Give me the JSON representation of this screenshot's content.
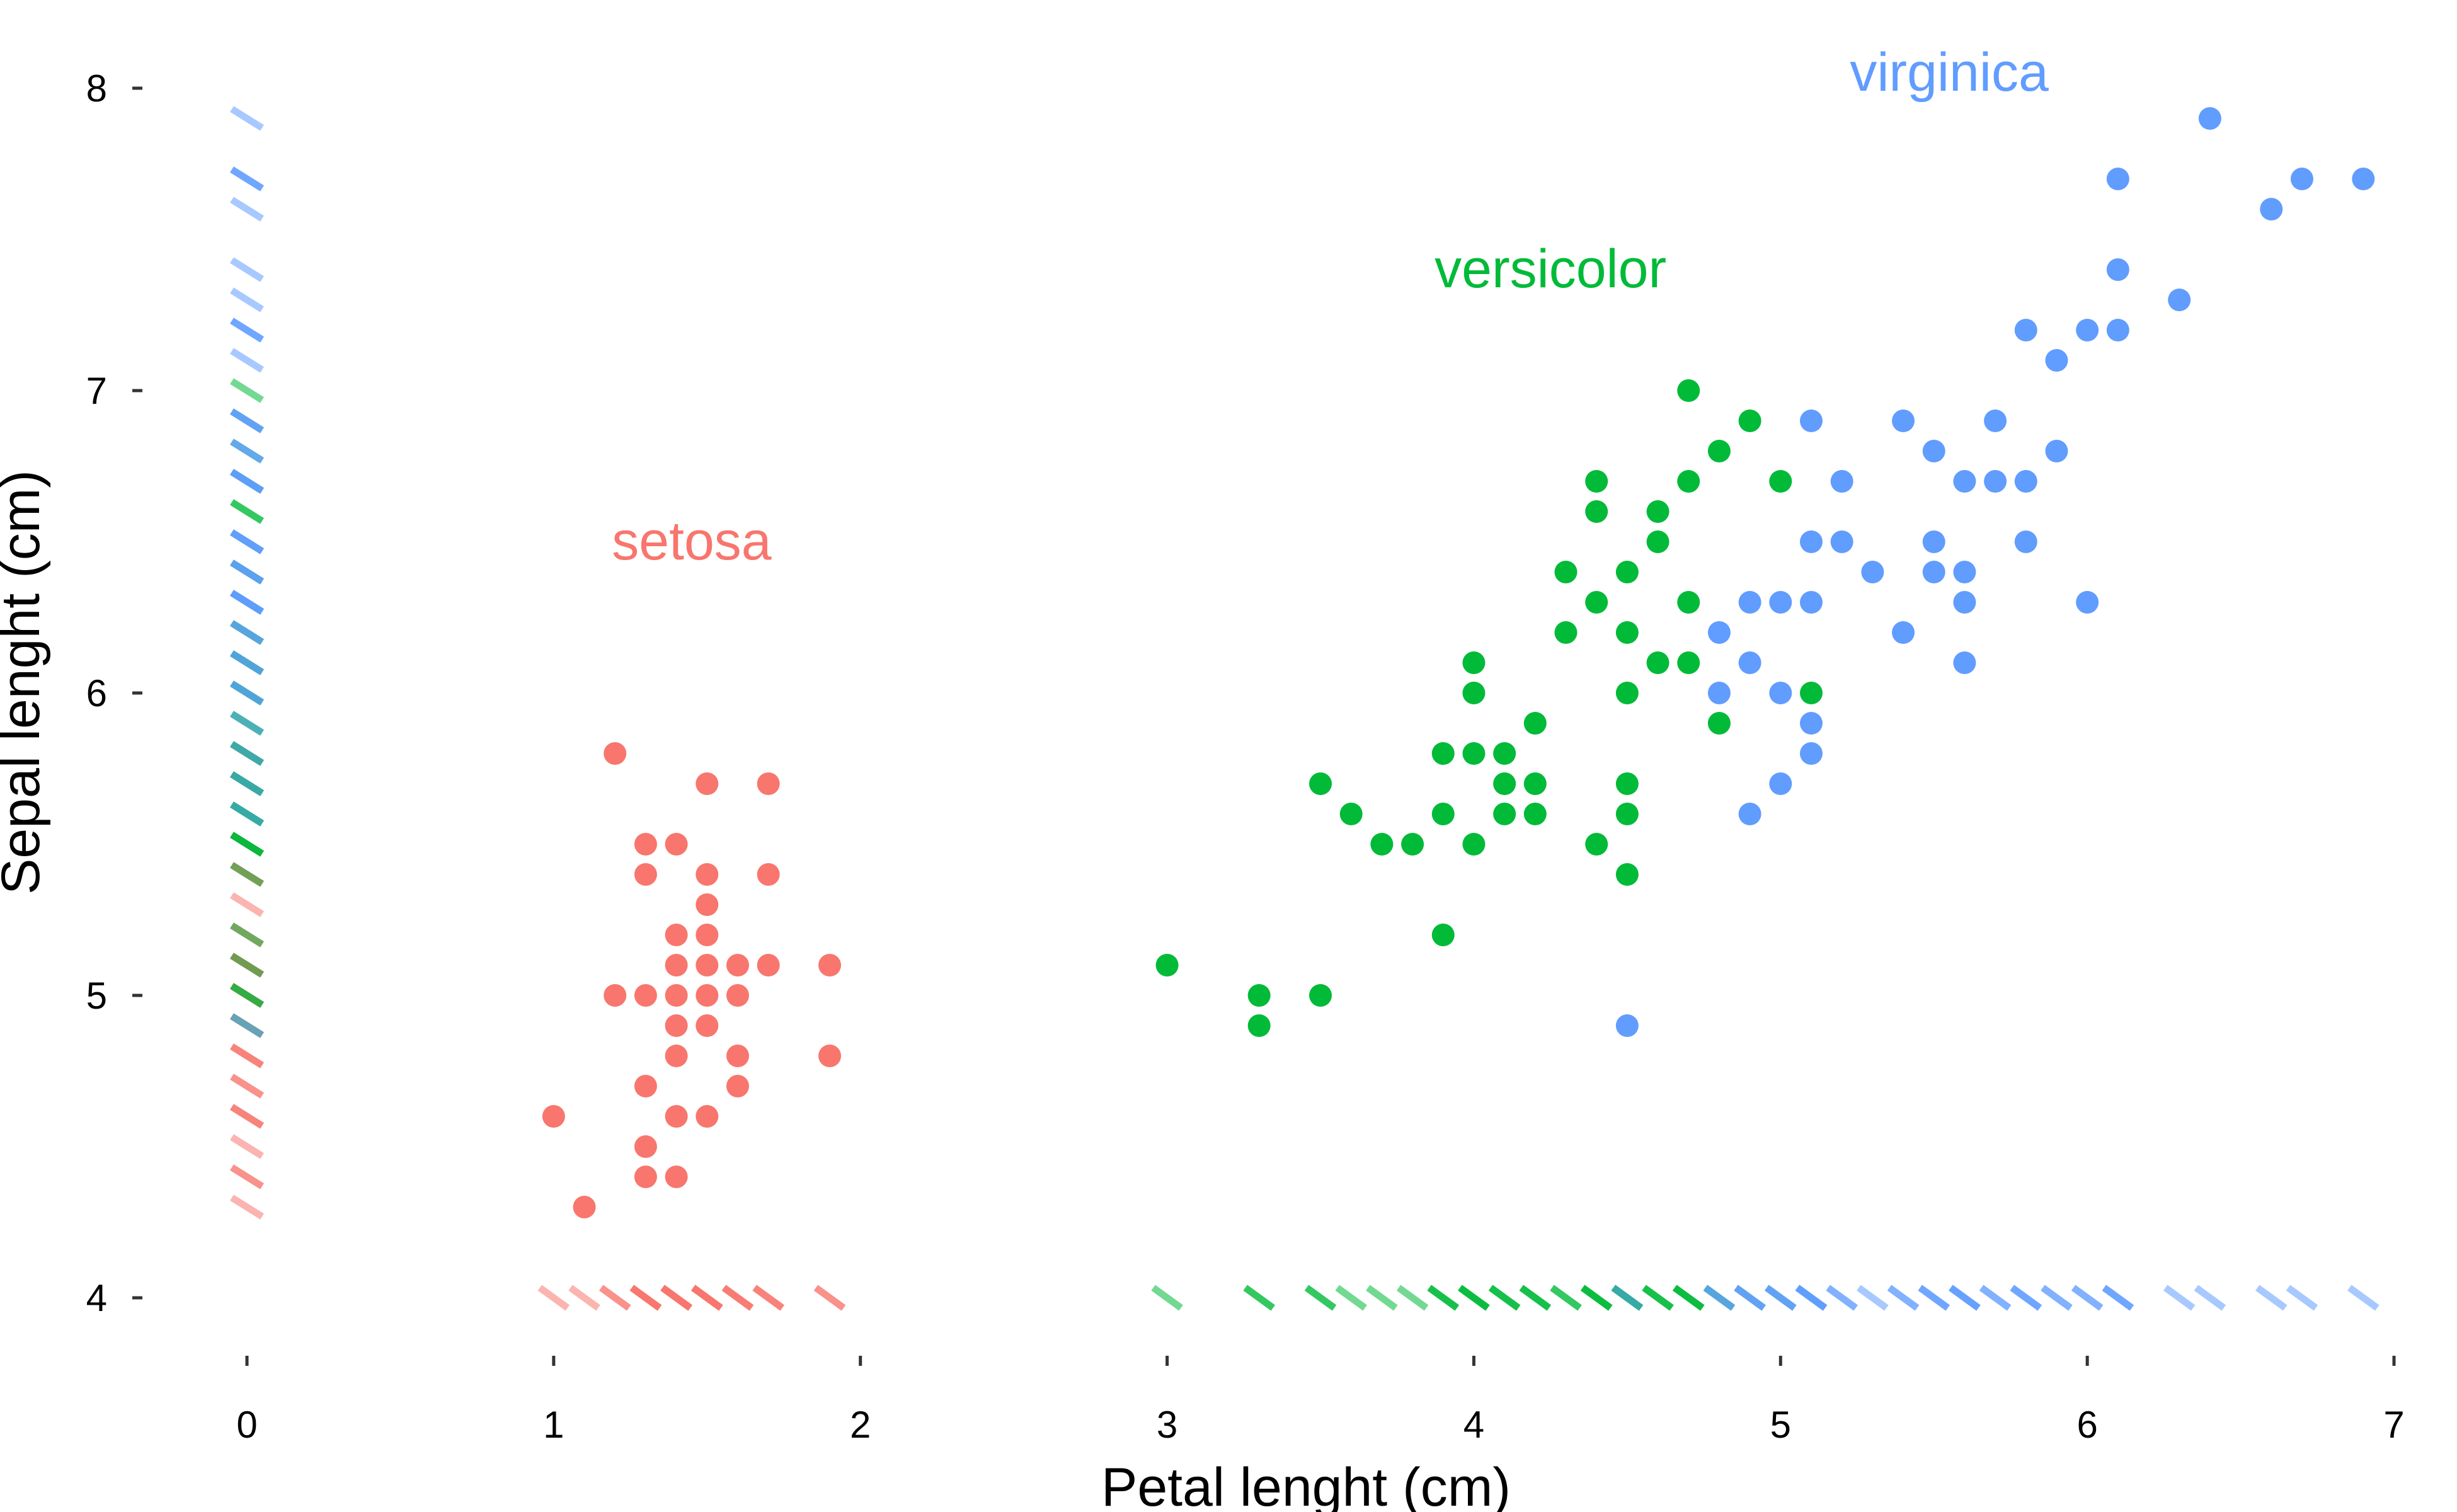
{
  "chart_data": {
    "type": "scatter",
    "title": "",
    "xlabel": "Petal lenght (cm)",
    "ylabel": "Sepal lenght (cm)",
    "xlim": [
      0,
      7
    ],
    "ylim": [
      4,
      8
    ],
    "x_ticks": [
      "0",
      "1",
      "2",
      "3",
      "4",
      "5",
      "6",
      "7"
    ],
    "y_ticks": [
      "4",
      "5",
      "6",
      "7",
      "8"
    ],
    "grid": false,
    "legend": "none",
    "rug": true,
    "series": [
      {
        "name": "setosa",
        "color": "#F8766D",
        "points": [
          [
            1.0,
            4.6
          ],
          [
            1.1,
            4.3
          ],
          [
            1.2,
            5.8
          ],
          [
            1.2,
            5.0
          ],
          [
            1.3,
            5.5
          ],
          [
            1.3,
            5.4
          ],
          [
            1.3,
            5.0
          ],
          [
            1.3,
            4.7
          ],
          [
            1.3,
            4.5
          ],
          [
            1.3,
            4.4
          ],
          [
            1.4,
            5.5
          ],
          [
            1.4,
            5.2
          ],
          [
            1.4,
            5.1
          ],
          [
            1.4,
            5.0
          ],
          [
            1.4,
            4.9
          ],
          [
            1.4,
            4.8
          ],
          [
            1.4,
            4.6
          ],
          [
            1.4,
            4.4
          ],
          [
            1.5,
            5.7
          ],
          [
            1.5,
            5.4
          ],
          [
            1.5,
            5.3
          ],
          [
            1.5,
            5.2
          ],
          [
            1.5,
            5.1
          ],
          [
            1.5,
            5.0
          ],
          [
            1.5,
            4.9
          ],
          [
            1.5,
            4.6
          ],
          [
            1.6,
            5.1
          ],
          [
            1.6,
            5.0
          ],
          [
            1.6,
            4.8
          ],
          [
            1.6,
            4.7
          ],
          [
            1.7,
            5.7
          ],
          [
            1.7,
            5.4
          ],
          [
            1.7,
            5.1
          ],
          [
            1.9,
            5.1
          ],
          [
            1.9,
            4.8
          ]
        ]
      },
      {
        "name": "versicolor",
        "color": "#00BA38",
        "points": [
          [
            3.0,
            5.1
          ],
          [
            3.3,
            5.0
          ],
          [
            3.3,
            4.9
          ],
          [
            3.5,
            5.7
          ],
          [
            3.5,
            5.0
          ],
          [
            3.6,
            5.6
          ],
          [
            3.7,
            5.5
          ],
          [
            3.8,
            5.5
          ],
          [
            3.9,
            5.8
          ],
          [
            3.9,
            5.6
          ],
          [
            3.9,
            5.2
          ],
          [
            4.0,
            6.1
          ],
          [
            4.0,
            6.0
          ],
          [
            4.0,
            5.8
          ],
          [
            4.0,
            5.5
          ],
          [
            4.1,
            5.8
          ],
          [
            4.1,
            5.7
          ],
          [
            4.1,
            5.6
          ],
          [
            4.2,
            5.9
          ],
          [
            4.2,
            5.7
          ],
          [
            4.2,
            5.6
          ],
          [
            4.3,
            6.4
          ],
          [
            4.3,
            6.2
          ],
          [
            4.4,
            6.7
          ],
          [
            4.4,
            6.6
          ],
          [
            4.4,
            6.3
          ],
          [
            4.4,
            5.5
          ],
          [
            4.5,
            6.4
          ],
          [
            4.5,
            6.2
          ],
          [
            4.5,
            6.0
          ],
          [
            4.5,
            5.7
          ],
          [
            4.5,
            5.6
          ],
          [
            4.5,
            5.4
          ],
          [
            4.6,
            6.6
          ],
          [
            4.6,
            6.5
          ],
          [
            4.6,
            6.1
          ],
          [
            4.7,
            7.0
          ],
          [
            4.7,
            6.7
          ],
          [
            4.7,
            6.3
          ],
          [
            4.7,
            6.1
          ],
          [
            4.8,
            6.8
          ],
          [
            4.8,
            5.9
          ],
          [
            4.9,
            6.9
          ],
          [
            5.0,
            6.7
          ],
          [
            5.1,
            6.0
          ]
        ]
      },
      {
        "name": "virginica",
        "color": "#619CFF",
        "points": [
          [
            4.5,
            4.9
          ],
          [
            4.8,
            6.2
          ],
          [
            4.8,
            6.0
          ],
          [
            4.9,
            6.3
          ],
          [
            4.9,
            6.1
          ],
          [
            4.9,
            5.6
          ],
          [
            5.0,
            6.3
          ],
          [
            5.0,
            6.0
          ],
          [
            5.0,
            5.7
          ],
          [
            5.1,
            6.9
          ],
          [
            5.1,
            6.5
          ],
          [
            5.1,
            6.3
          ],
          [
            5.1,
            5.9
          ],
          [
            5.1,
            5.8
          ],
          [
            5.2,
            6.7
          ],
          [
            5.2,
            6.5
          ],
          [
            5.3,
            6.4
          ],
          [
            5.4,
            6.9
          ],
          [
            5.4,
            6.2
          ],
          [
            5.5,
            6.8
          ],
          [
            5.5,
            6.5
          ],
          [
            5.5,
            6.4
          ],
          [
            5.6,
            6.7
          ],
          [
            5.6,
            6.4
          ],
          [
            5.6,
            6.3
          ],
          [
            5.6,
            6.1
          ],
          [
            5.7,
            6.9
          ],
          [
            5.7,
            6.7
          ],
          [
            5.8,
            7.2
          ],
          [
            5.8,
            6.7
          ],
          [
            5.8,
            6.5
          ],
          [
            5.9,
            7.1
          ],
          [
            5.9,
            6.8
          ],
          [
            6.0,
            7.2
          ],
          [
            6.0,
            6.3
          ],
          [
            6.1,
            7.7
          ],
          [
            6.1,
            7.4
          ],
          [
            6.1,
            7.2
          ],
          [
            6.3,
            7.3
          ],
          [
            6.4,
            7.9
          ],
          [
            6.6,
            7.6
          ],
          [
            6.7,
            7.7
          ],
          [
            6.9,
            7.7
          ]
        ]
      }
    ],
    "annotations": [
      {
        "text": "setosa",
        "series": "setosa",
        "x": 1.45,
        "y": 6.5
      },
      {
        "text": "versicolor",
        "series": "versicolor",
        "x": 4.25,
        "y": 7.4
      },
      {
        "text": "virginica",
        "series": "virginica",
        "x": 5.55,
        "y": 8.05
      }
    ]
  }
}
